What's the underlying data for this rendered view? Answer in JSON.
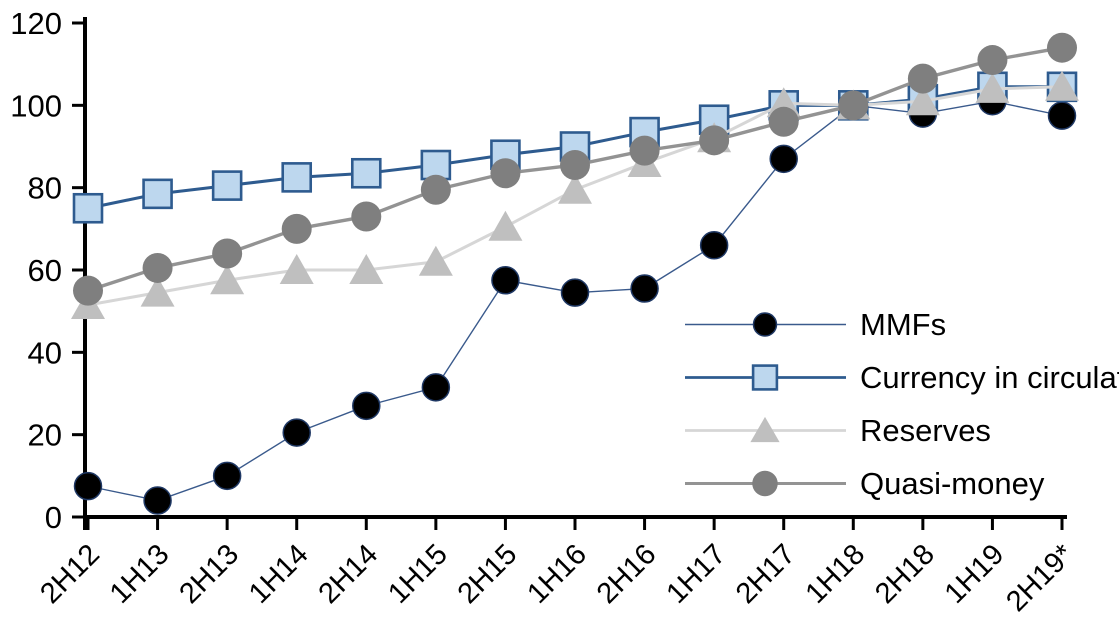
{
  "chart_data": {
    "type": "line",
    "title": "",
    "xlabel": "",
    "ylabel": "",
    "categories": [
      "2H12",
      "1H13",
      "2H13",
      "1H14",
      "2H14",
      "1H15",
      "2H15",
      "1H16",
      "2H16",
      "1H17",
      "2H17",
      "1H18",
      "2H18",
      "1H19",
      "2H19*"
    ],
    "yticks": [
      0,
      20,
      40,
      60,
      80,
      100,
      120
    ],
    "ylim": [
      0,
      120
    ],
    "grid": false,
    "legend_position": "inside-right",
    "axis_color": "#000000",
    "background_color": "#ffffff",
    "series": [
      {
        "name": "MMFs",
        "marker": "circle",
        "marker_size": 13.5,
        "marker_fill": "#000000",
        "marker_stroke": "#1f3864",
        "marker_stroke_width": 1.5,
        "line_color": "#3a5a8c",
        "line_width": 1.4,
        "values": [
          7.5,
          4,
          10,
          20.5,
          27,
          31.5,
          57.5,
          54.5,
          55.5,
          66,
          87,
          100,
          98,
          101,
          97.5
        ]
      },
      {
        "name": "Currency in circulation",
        "marker": "square",
        "marker_size": 14,
        "marker_fill": "#bdd7ee",
        "marker_stroke": "#2e5b8f",
        "marker_stroke_width": 2.6,
        "line_color": "#2e5b8f",
        "line_width": 3,
        "values": [
          75,
          78.5,
          80.5,
          82.5,
          83.5,
          85.5,
          88,
          90,
          93.5,
          96.5,
          100,
          100,
          101.5,
          104.5,
          104.5
        ]
      },
      {
        "name": "Reserves",
        "marker": "triangle",
        "marker_size": 16,
        "marker_fill": "#bfbfbf",
        "marker_stroke": "none",
        "marker_stroke_width": 0,
        "line_color": "#d6d6d6",
        "line_width": 3,
        "values": [
          51.5,
          54.5,
          57.5,
          60,
          60,
          62,
          70.5,
          79.5,
          86,
          92,
          100.5,
          100,
          101,
          104,
          104.5
        ]
      },
      {
        "name": "Quasi-money",
        "marker": "circle",
        "marker_size": 15,
        "marker_fill": "#7f7f7f",
        "marker_stroke": "none",
        "marker_stroke_width": 0,
        "line_color": "#939393",
        "line_width": 3.4,
        "values": [
          55,
          60.5,
          64,
          70,
          73,
          79.5,
          83.5,
          85.5,
          89,
          91.5,
          96,
          100,
          106.5,
          111,
          114
        ]
      }
    ]
  }
}
